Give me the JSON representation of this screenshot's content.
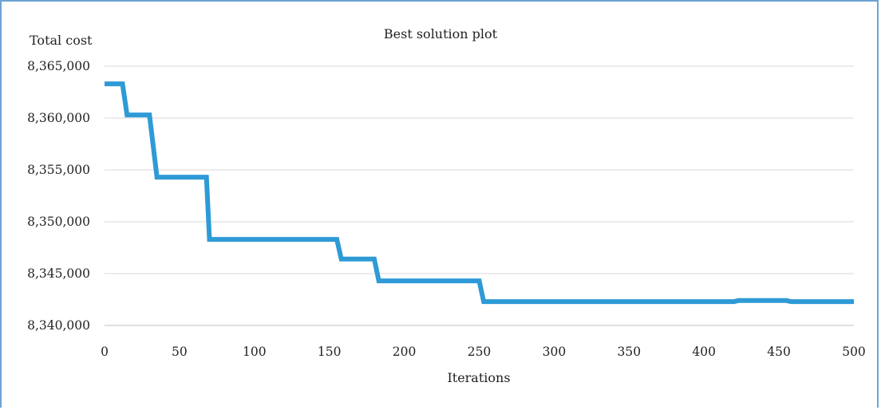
{
  "chart_data": {
    "type": "line",
    "title": "Best solution plot",
    "xlabel": "Iterations",
    "ylabel": "Total cost",
    "xlim": [
      0,
      500
    ],
    "ylim": [
      8340000,
      8365000
    ],
    "x_ticks": [
      0,
      50,
      100,
      150,
      200,
      250,
      300,
      350,
      400,
      450,
      500
    ],
    "y_ticks": [
      8340000,
      8345000,
      8350000,
      8355000,
      8360000,
      8365000
    ],
    "x_tick_labels": [
      "0",
      "50",
      "100",
      "150",
      "200",
      "250",
      "300",
      "350",
      "400",
      "450",
      "500"
    ],
    "y_tick_labels": [
      "8,340,000",
      "8,345,000",
      "8,350,000",
      "8,355,000",
      "8,360,000",
      "8,365,000"
    ],
    "grid": "horizontal",
    "line_color": "#2e9ad6",
    "series": [
      {
        "x": [
          0,
          12,
          15,
          30,
          35,
          68,
          70,
          155,
          158,
          180,
          183,
          250,
          253,
          420,
          423,
          455,
          458,
          500
        ],
        "y": [
          8363300,
          8363300,
          8360300,
          8360300,
          8354300,
          8354300,
          8348300,
          8348300,
          8346400,
          8346400,
          8344300,
          8344300,
          8342300,
          8342300,
          8342400,
          8342400,
          8342300,
          8342300
        ]
      }
    ]
  }
}
